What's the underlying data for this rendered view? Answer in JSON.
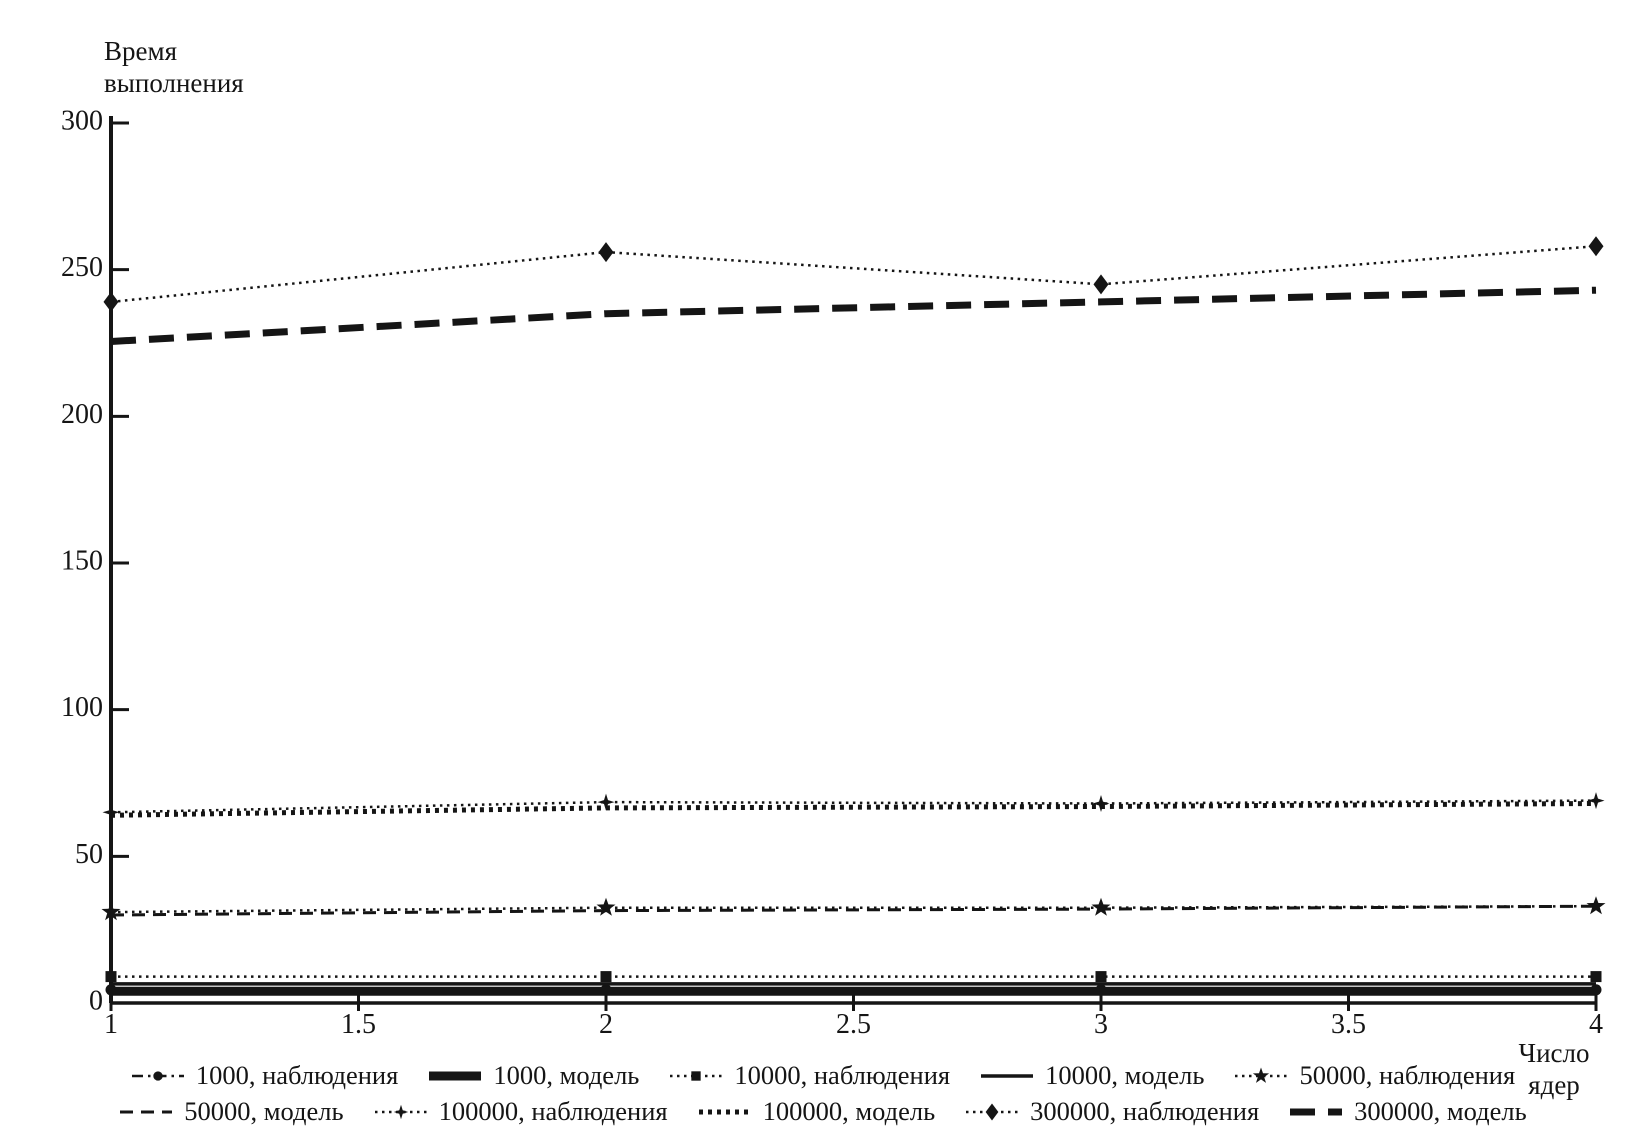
{
  "figure": {
    "y_axis_label_line1": "Время",
    "y_axis_label_line2": "выполнения",
    "x_axis_label_line1": "Число",
    "x_axis_label_line2": "ядер"
  },
  "chart_data": {
    "type": "line",
    "title": "",
    "xlabel": "Число ядер",
    "ylabel": "Время выполнения",
    "xlim": [
      1,
      4
    ],
    "ylim": [
      0,
      300
    ],
    "grid": false,
    "legend_position": "bottom",
    "axis_color": "#151515",
    "x": [
      1,
      2,
      3,
      4
    ],
    "x_tick_values": [
      1,
      1.5,
      2,
      2.5,
      3,
      3.5,
      4
    ],
    "x_tick_labels": [
      "1",
      "1.5",
      "2",
      "2.5",
      "3",
      "3.5",
      "4"
    ],
    "y_tick_values": [
      0,
      50,
      100,
      150,
      200,
      250,
      300
    ],
    "y_tick_labels": [
      "0",
      "50",
      "100",
      "150",
      "200",
      "250",
      "300"
    ],
    "legend_rows": [
      [
        0,
        1,
        2,
        3,
        4
      ],
      [
        5,
        6,
        7,
        8,
        9
      ]
    ],
    "series": [
      {
        "name": "1000, наблюдения",
        "style": "dashdot",
        "marker": "circle",
        "width": 2.5,
        "values": [
          4.5,
          4.5,
          4.5,
          4.5
        ]
      },
      {
        "name": "1000, модель",
        "style": "solid",
        "marker": "none",
        "width": 9,
        "values": [
          4,
          4,
          4,
          4
        ]
      },
      {
        "name": "10000, наблюдения",
        "style": "dotted",
        "marker": "square",
        "width": 2.5,
        "values": [
          9,
          9,
          9,
          9
        ]
      },
      {
        "name": "10000, модель",
        "style": "solid",
        "marker": "none",
        "width": 3.5,
        "values": [
          6.5,
          6.5,
          6.5,
          6.5
        ]
      },
      {
        "name": "50000, наблюдения",
        "style": "dotted",
        "marker": "star",
        "width": 2.5,
        "values": [
          31,
          32.5,
          32.5,
          33
        ]
      },
      {
        "name": "50000, модель",
        "style": "dashed",
        "marker": "none",
        "width": 3,
        "values": [
          30,
          31.5,
          32,
          33
        ]
      },
      {
        "name": "100000, наблюдения",
        "style": "dotted",
        "marker": "star4",
        "width": 2.5,
        "values": [
          65,
          68.5,
          68,
          69
        ]
      },
      {
        "name": "100000, модель",
        "style": "dotted-heavy",
        "marker": "none",
        "width": 5,
        "values": [
          64,
          66.5,
          67,
          68
        ]
      },
      {
        "name": "300000, наблюдения",
        "style": "dotted",
        "marker": "diamond",
        "width": 2.5,
        "values": [
          239,
          256,
          245,
          258
        ]
      },
      {
        "name": "300000, модель",
        "style": "dashed-heavy",
        "marker": "none",
        "width": 7,
        "values": [
          225.5,
          235,
          239,
          243
        ]
      }
    ]
  }
}
